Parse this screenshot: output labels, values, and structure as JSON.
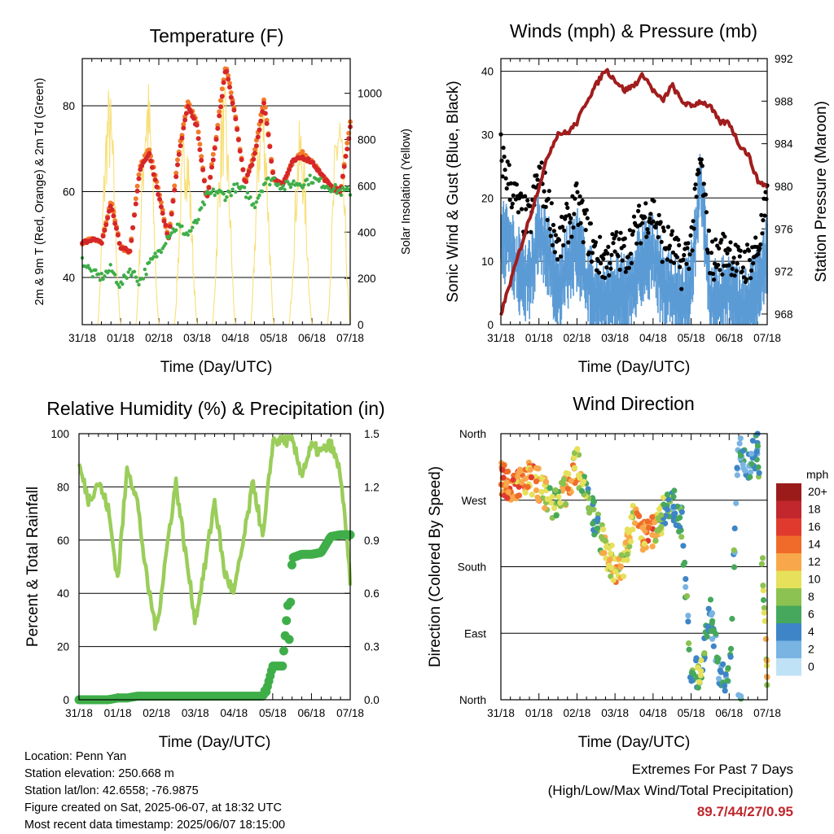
{
  "time_ticks": [
    "31/18",
    "01/18",
    "02/18",
    "03/18",
    "04/18",
    "05/18",
    "06/18",
    "07/18"
  ],
  "xlabel": "Time (Day/UTC)",
  "colors": {
    "temp_9m": "#d62728",
    "temp_2m": "#f47b2a",
    "dewpoint": "#3fae49",
    "solar": "#f7e07a",
    "gust": "#000000",
    "wind": "#5b9bd5",
    "pressure": "#a11d1d",
    "rh": "#9acd5a",
    "precip": "#3fae49"
  },
  "chart_data": [
    {
      "type": "line",
      "title": "Temperature (F)",
      "xlabel": "Time (Day/UTC)",
      "ylabel": "2m & 9m T (Red, Orange) & 2m Td (Green)",
      "ylabel_right": "Solar Insolation (Yellow)",
      "ylim": [
        29,
        91
      ],
      "yticks": [
        40,
        60,
        80
      ],
      "ylim_right": [
        0,
        1150
      ],
      "yticks_right": [
        0,
        200,
        400,
        600,
        800,
        1000
      ],
      "x": [
        0,
        0.25,
        0.5,
        0.75,
        1,
        1.25,
        1.5,
        1.75,
        2,
        2.25,
        2.5,
        2.75,
        3,
        3.25,
        3.5,
        3.75,
        4,
        4.25,
        4.5,
        4.75,
        5,
        5.25,
        5.5,
        5.75,
        6,
        6.25,
        6.5,
        6.75,
        7
      ],
      "series": [
        {
          "key": "temp_9m",
          "values": [
            48,
            49,
            48,
            57,
            47,
            46,
            65,
            69,
            59,
            49,
            67,
            80,
            75,
            58,
            72,
            89,
            77,
            62,
            68,
            81,
            63,
            62,
            67,
            68,
            67,
            64,
            61,
            60,
            75
          ]
        },
        {
          "key": "temp_2m",
          "values": [
            48,
            49,
            48,
            58,
            47,
            46,
            66,
            70,
            60,
            49,
            68,
            81,
            76,
            58,
            73,
            90,
            78,
            62,
            69,
            82,
            63,
            62,
            67,
            69,
            67,
            64,
            61,
            60,
            76
          ]
        },
        {
          "key": "dewpoint",
          "values": [
            44,
            41,
            40,
            42,
            38,
            42,
            39,
            43,
            46,
            50,
            52,
            50,
            53,
            59,
            60,
            59,
            61,
            60,
            57,
            62,
            63,
            61,
            62,
            62,
            63,
            62,
            61,
            60,
            60
          ]
        }
      ],
      "solar": {
        "peak_day": [
          1100,
          1050,
          1100,
          900,
          1050,
          1080,
          900,
          1000
        ]
      }
    },
    {
      "type": "line",
      "title": "Winds (mph) & Pressure (mb)",
      "xlabel": "Time (Day/UTC)",
      "ylabel": "Sonic Wind & Gust (Blue, Black)",
      "ylabel_right": "Station Pressure (Maroon)",
      "ylim": [
        0,
        42
      ],
      "yticks": [
        0,
        10,
        20,
        30,
        40
      ],
      "ylim_right": [
        967,
        992
      ],
      "yticks_right": [
        968,
        972,
        976,
        980,
        984,
        988,
        992
      ],
      "x": [
        0,
        0.25,
        0.5,
        0.75,
        1,
        1.25,
        1.5,
        1.75,
        2,
        2.25,
        2.5,
        2.75,
        3,
        3.25,
        3.5,
        3.75,
        4,
        4.25,
        4.5,
        4.75,
        5,
        5.25,
        5.5,
        5.75,
        6,
        6.25,
        6.5,
        6.75,
        7
      ],
      "series": [
        {
          "key": "wind",
          "values": [
            17,
            15,
            11,
            10,
            18,
            14,
            7,
            12,
            15,
            10,
            7,
            6,
            8,
            7,
            10,
            13,
            14,
            9,
            8,
            5,
            9,
            26,
            6,
            7,
            8,
            5,
            6,
            8,
            14
          ]
        },
        {
          "key": "gust",
          "values": [
            27,
            22,
            18,
            16,
            24,
            19,
            12,
            16,
            19,
            15,
            11,
            10,
            12,
            11,
            14,
            17,
            18,
            13,
            12,
            9,
            13,
            26,
            10,
            11,
            12,
            9,
            10,
            12,
            19
          ]
        },
        {
          "key": "pressure",
          "values": [
            968,
            971,
            974,
            977,
            980,
            983,
            985,
            985,
            986,
            988,
            989.5,
            991,
            990,
            989,
            989.5,
            990.5,
            989,
            988,
            989.5,
            988,
            987.5,
            988,
            987.5,
            986,
            986,
            984,
            983,
            980.5,
            980
          ]
        }
      ]
    },
    {
      "type": "line",
      "title": "Relative Humidity (%) & Precipitation (in)",
      "xlabel": "Time (Day/UTC)",
      "ylabel": "Percent & Total Rainfall",
      "ylim": [
        0,
        100
      ],
      "yticks": [
        0,
        20,
        40,
        60,
        80,
        100
      ],
      "ylim_right": [
        0,
        1.5
      ],
      "yticks_right": [
        "0.0",
        "0.3",
        "0.6",
        "0.9",
        "1.2",
        "1.5"
      ],
      "x": [
        0,
        0.25,
        0.5,
        0.75,
        1,
        1.25,
        1.5,
        1.75,
        2,
        2.25,
        2.5,
        2.75,
        3,
        3.25,
        3.5,
        3.75,
        4,
        4.25,
        4.5,
        4.75,
        5,
        5.25,
        5.5,
        5.75,
        6,
        6.25,
        6.5,
        6.75,
        7
      ],
      "series": [
        {
          "key": "rh",
          "values": [
            88,
            75,
            82,
            72,
            45,
            88,
            75,
            45,
            26,
            55,
            82,
            55,
            30,
            50,
            75,
            48,
            40,
            60,
            82,
            60,
            97,
            98,
            97,
            85,
            95,
            93,
            96,
            85,
            45
          ]
        },
        {
          "key": "precip",
          "values": [
            0,
            0,
            0,
            0,
            0.01,
            0.01,
            0.02,
            0.02,
            0.02,
            0.02,
            0.02,
            0.02,
            0.02,
            0.02,
            0.02,
            0.02,
            0.02,
            0.02,
            0.02,
            0.02,
            0.19,
            0.19,
            0.8,
            0.82,
            0.82,
            0.83,
            0.92,
            0.93,
            0.93
          ]
        }
      ]
    },
    {
      "type": "scatter",
      "title": "Wind Direction",
      "xlabel": "Time (Day/UTC)",
      "ylabel": "Direction (Colored By Speed)",
      "yticks": [
        "North",
        "West",
        "South",
        "East",
        "North"
      ],
      "ylim": [
        360,
        0
      ],
      "colorbar": {
        "title": "mph",
        "labels": [
          "20+",
          "18",
          "16",
          "14",
          "12",
          "10",
          "8",
          "6",
          "4",
          "2",
          "0"
        ],
        "colors": [
          "#9b1b1b",
          "#c1272d",
          "#e03a2f",
          "#f06b2a",
          "#f8a84a",
          "#e6e05a",
          "#8cc251",
          "#46a85c",
          "#3d85c6",
          "#79b4e2",
          "#bfe2f6"
        ]
      },
      "x": [
        0,
        0.25,
        0.5,
        0.75,
        1,
        1.25,
        1.5,
        1.75,
        2,
        2.25,
        2.5,
        2.75,
        3,
        3.25,
        3.5,
        3.75,
        4,
        4.25,
        4.5,
        4.75,
        5,
        5.25,
        5.5,
        5.75,
        6,
        6.25,
        6.5,
        6.75,
        7
      ],
      "direction": [
        300,
        290,
        290,
        300,
        290,
        270,
        260,
        290,
        320,
        270,
        240,
        200,
        180,
        190,
        260,
        220,
        230,
        250,
        270,
        240,
        30,
        40,
        120,
        30,
        20,
        350,
        320,
        340,
        20
      ],
      "speed": [
        14,
        13,
        14,
        12,
        14,
        8,
        7,
        12,
        11,
        6,
        5,
        10,
        11,
        9,
        12,
        12,
        13,
        7,
        6,
        5,
        6,
        8,
        4,
        4,
        5,
        4,
        3,
        5,
        10
      ]
    }
  ],
  "info": {
    "location": "Location: Penn Yan",
    "elevation": "Station elevation: 250.668 m",
    "latlon": "Station lat/lon: 42.6558; -76.9875",
    "created": "Figure created on Sat, 2025-06-07, at 18:32 UTC",
    "recent": "Most recent data timestamp: 2025/06/07 18:15:00"
  },
  "extremes": {
    "title": "Extremes For Past 7 Days",
    "subtitle": "(High/Low/Max Wind/Total Precipitation)",
    "values": "89.7/44/27/0.95"
  }
}
